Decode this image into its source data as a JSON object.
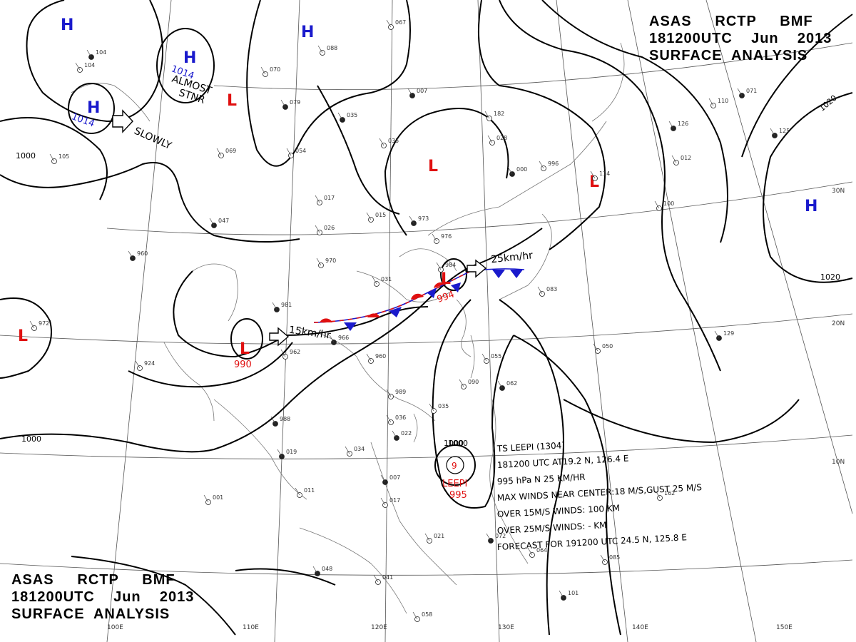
{
  "header": {
    "line1": [
      "ASAS",
      "RCTP",
      "BMF"
    ],
    "line2": [
      "181200UTC",
      "Jun",
      "2013"
    ],
    "line3": "SURFACE  ANALYSIS"
  },
  "grid": {
    "lon_labels": [
      "100E",
      "110E",
      "120E",
      "130E",
      "140E",
      "150E"
    ],
    "lat_labels": [
      "30N",
      "20N",
      "10N"
    ]
  },
  "isobar_labels": [
    "1000",
    "1000",
    "1000",
    "1020",
    "1020"
  ],
  "systems": {
    "highs": [
      {
        "label": "H"
      },
      {
        "label": "H"
      },
      {
        "label": "H",
        "pressure": "1014"
      },
      {
        "label": "H",
        "pressure": "1014"
      },
      {
        "label": "H"
      }
    ],
    "lows": [
      {
        "label": "L"
      },
      {
        "label": "L"
      },
      {
        "label": "L"
      },
      {
        "label": "L",
        "pressure": "990"
      },
      {
        "label": "L",
        "pressure": "994"
      },
      {
        "label": "L"
      }
    ]
  },
  "annotations": {
    "almost": "ALMOST",
    "stnr": "STNR",
    "slowly": "SLOWLY",
    "speed_east": "25km/hr",
    "speed_west": "15km/hr"
  },
  "typhoon": {
    "name": "LEEPI",
    "pressure": "995",
    "isobar": "1000",
    "info_lines": [
      "TS LEEPI  (1304)",
      "181200 UTC  AT19.2 N, 126.4 E",
      "995 hPa  N  25 KM/HR",
      "MAX WINDS NEAR CENTER:18 M/S,GUST 25 M/S",
      "OVER 15M/S WINDS: 100 KM",
      "OVER 25M/S WINDS: - KM",
      "FORECAST FOR 191200 UTC 24.5 N, 125.8 E"
    ]
  },
  "station_labels": [
    "104",
    "104",
    "070",
    "079",
    "069",
    "054",
    "035",
    "088",
    "067",
    "007",
    "035",
    "017",
    "047",
    "026",
    "015",
    "973",
    "976",
    "970",
    "981",
    "924",
    "972",
    "966",
    "962",
    "960",
    "988",
    "989",
    "036",
    "022",
    "035",
    "034",
    "019",
    "001",
    "011",
    "007",
    "017",
    "021",
    "048",
    "041",
    "058",
    "072",
    "064",
    "085",
    "101",
    "090",
    "055",
    "062",
    "083",
    "050",
    "129",
    "162",
    "114",
    "126",
    "100",
    "110",
    "125",
    "182",
    "028",
    "000",
    "996",
    "012",
    "071",
    "031",
    "984",
    "960",
    "105",
    "997"
  ],
  "colors": {
    "high": "#1a1acc",
    "low": "#e01010",
    "cold_front": "#1a1acc",
    "warm_front": "#e01010"
  }
}
